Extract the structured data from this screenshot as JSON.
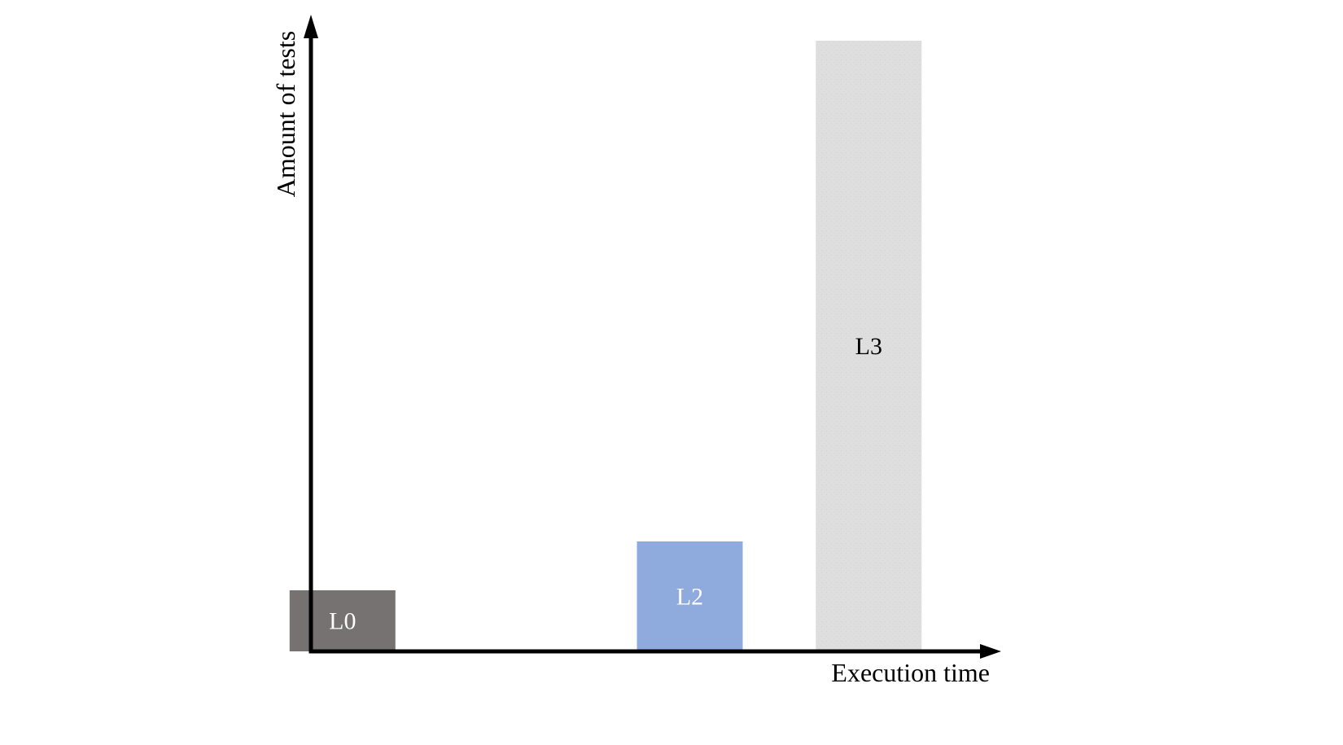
{
  "chart_data": {
    "type": "bar",
    "title": "",
    "xlabel": "Execution time",
    "ylabel": "Amount of tests",
    "categories": [
      "L0",
      "L2",
      "L3"
    ],
    "x": [
      1,
      4.3,
      6
    ],
    "values": [
      10,
      18,
      100
    ],
    "ylim": [
      0,
      100
    ],
    "xlim": [
      0.7,
      7.8
    ],
    "bar_colors": [
      "#767272",
      "#8fabdd",
      "#dedede"
    ],
    "bar_label_colors": [
      "#ffffff",
      "#ffffff",
      "#000000"
    ],
    "axis_color": "#000000",
    "grid": false,
    "legend": "none"
  }
}
